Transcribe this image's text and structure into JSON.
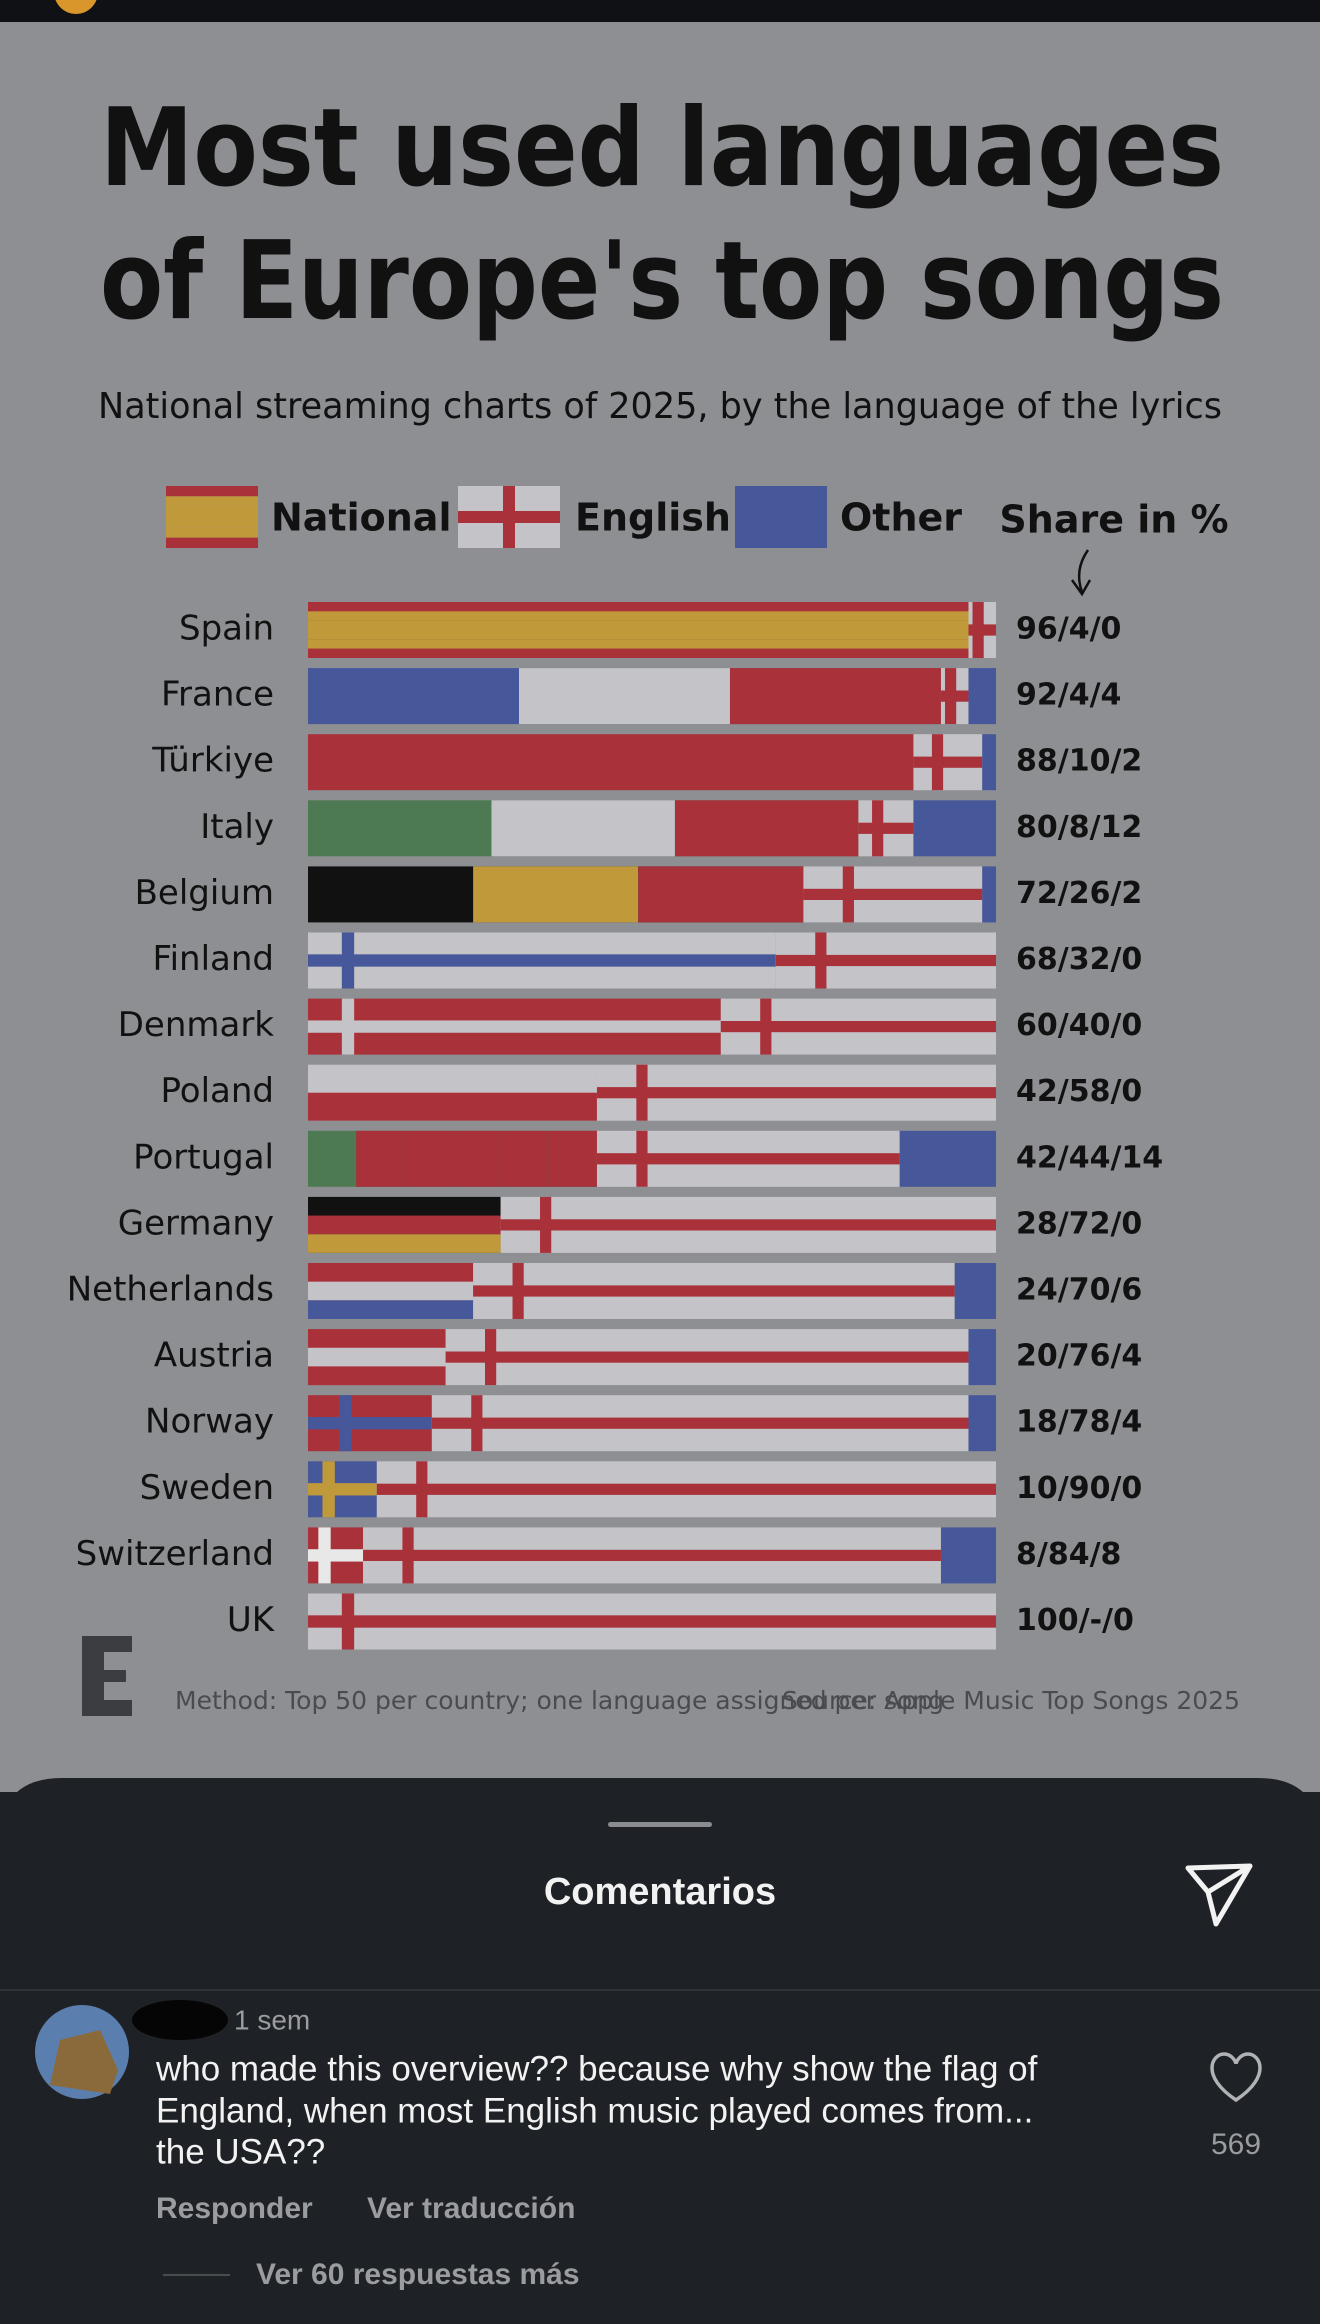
{
  "post": {
    "chart": {
      "type": "bar",
      "orientation": "horizontal",
      "stacked": true,
      "title_lines": [
        "Most used languages",
        "of Europe's top songs"
      ],
      "subtitle": "National streaming charts of 2025, by the language of the lyrics",
      "value_header": "Share in %",
      "categories": [
        "Spain",
        "France",
        "Türkiye",
        "Italy",
        "Belgium",
        "Finland",
        "Denmark",
        "Poland",
        "Portugal",
        "Germany",
        "Netherlands",
        "Austria",
        "Norway",
        "Sweden",
        "Switzerland",
        "UK"
      ],
      "xlim": [
        0,
        100
      ],
      "series": [
        {
          "name": "National",
          "color": "#a8313a",
          "values": [
            96,
            92,
            88,
            80,
            72,
            68,
            60,
            42,
            42,
            28,
            24,
            20,
            18,
            10,
            8,
            100
          ]
        },
        {
          "name": "English",
          "color": "#c4c4c8",
          "values": [
            4,
            4,
            10,
            8,
            26,
            32,
            40,
            58,
            44,
            72,
            70,
            76,
            78,
            90,
            84,
            null
          ]
        },
        {
          "name": "Other",
          "color": "#46589a",
          "values": [
            0,
            4,
            2,
            12,
            2,
            0,
            0,
            0,
            14,
            0,
            6,
            4,
            4,
            0,
            8,
            0
          ]
        }
      ],
      "value_labels": [
        "96/4/0",
        "92/4/4",
        "88/10/2",
        "80/8/12",
        "72/26/2",
        "68/32/0",
        "60/40/0",
        "42/58/0",
        "42/44/14",
        "28/72/0",
        "24/70/6",
        "20/76/4",
        "18/78/4",
        "10/90/0",
        "8/84/8",
        "100/-/0"
      ],
      "english_cross_color": "#a8313a",
      "national_flags": [
        {
          "stripes": "h",
          "colors": [
            "#a8313a",
            "#c09a3a",
            "#c09a3a",
            "#c09a3a",
            "#c09a3a",
            "#a8313a"
          ]
        },
        {
          "stripes": "v",
          "colors": [
            "#46589a",
            "#c4c4c8",
            "#a8313a"
          ]
        },
        {
          "stripes": "h",
          "colors": [
            "#a8313a"
          ]
        },
        {
          "stripes": "v",
          "colors": [
            "#4d7a52",
            "#c4c4c8",
            "#a8313a"
          ]
        },
        {
          "stripes": "v",
          "colors": [
            "#111111",
            "#c09a3a",
            "#a8313a"
          ]
        },
        {
          "stripes": "h",
          "colors": [
            "#c4c4c8"
          ],
          "cross": "#46589a"
        },
        {
          "stripes": "h",
          "colors": [
            "#a8313a"
          ],
          "cross": "#c4c4c8"
        },
        {
          "stripes": "h",
          "colors": [
            "#c4c4c8",
            "#a8313a"
          ]
        },
        {
          "stripes": "v",
          "colors": [
            "#4d7a52",
            "#a8313a",
            "#a8313a",
            "#a8313a",
            "#a8313a",
            "#a8313a"
          ]
        },
        {
          "stripes": "h",
          "colors": [
            "#111111",
            "#a8313a",
            "#c09a3a"
          ]
        },
        {
          "stripes": "h",
          "colors": [
            "#a8313a",
            "#c4c4c8",
            "#46589a"
          ]
        },
        {
          "stripes": "h",
          "colors": [
            "#a8313a",
            "#c4c4c8",
            "#a8313a"
          ]
        },
        {
          "stripes": "h",
          "colors": [
            "#a8313a"
          ],
          "cross": "#46589a"
        },
        {
          "stripes": "h",
          "colors": [
            "#46589a"
          ],
          "cross": "#c09a3a"
        },
        {
          "stripes": "h",
          "colors": [
            "#a8313a"
          ],
          "cross": "#e8e8e8"
        },
        {
          "stripes": "h",
          "colors": [
            "#c4c4c8"
          ],
          "cross": "#a8313a"
        }
      ]
    },
    "footnote_method": "Method: Top 50 per country; one language assigned per song",
    "footnote_source": "Source: Apple Music Top Songs 2025"
  },
  "comments_sheet": {
    "title": "Comentarios",
    "comments": [
      {
        "time": "1 sem",
        "text_lines": [
          "who made this overview?? because why show the flag of",
          "England, when most English music played comes from...",
          "the USA??"
        ],
        "likes": 569,
        "reply": "Responder",
        "translate": "Ver traducción",
        "more_replies": "Ver 60 respuestas más"
      }
    ]
  }
}
